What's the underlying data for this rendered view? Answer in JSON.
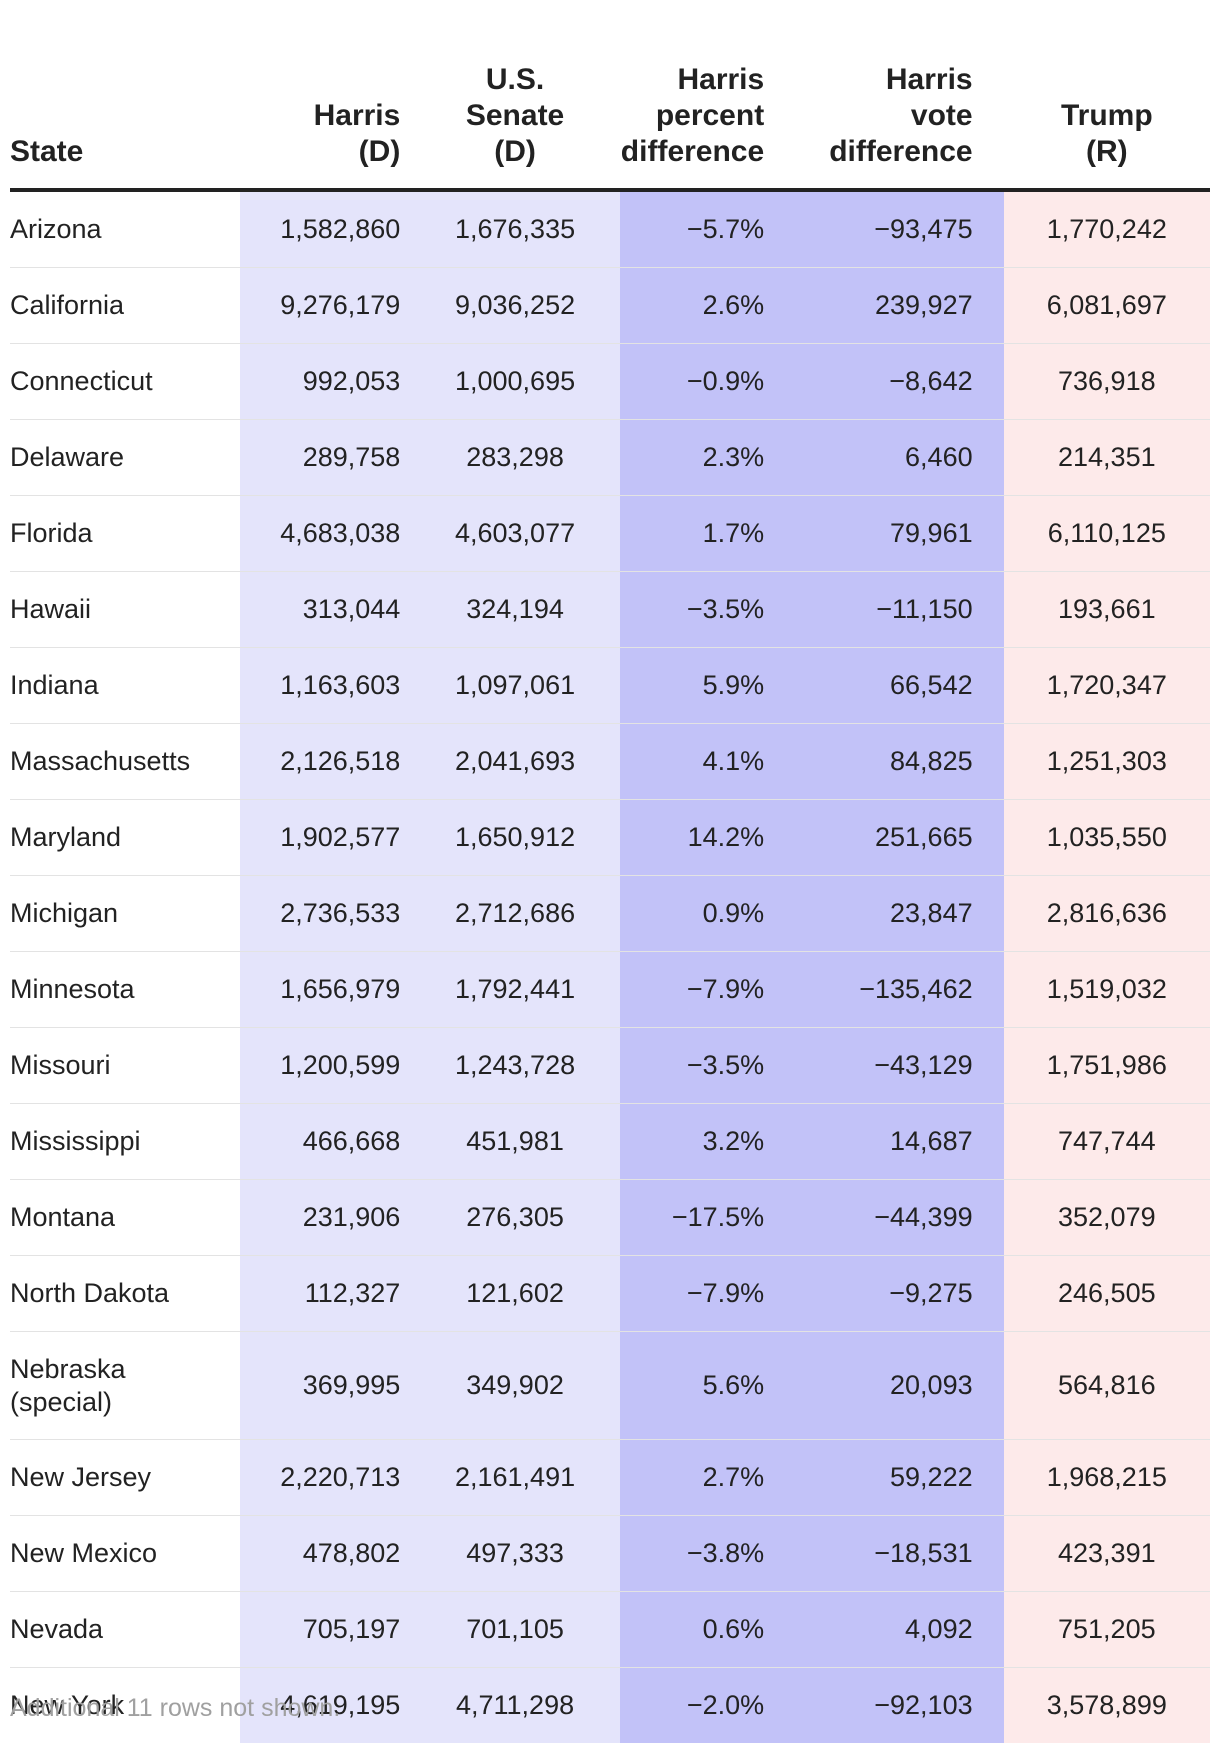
{
  "chart_data": {
    "type": "table",
    "columns": [
      {
        "key": "state",
        "label_lines": [
          "State"
        ]
      },
      {
        "key": "harris",
        "label_lines": [
          "Harris",
          "(D)"
        ]
      },
      {
        "key": "senate",
        "label_lines": [
          "U.S.",
          "Senate",
          "(D)"
        ]
      },
      {
        "key": "pct",
        "label_lines": [
          "Harris",
          "percent",
          "difference"
        ]
      },
      {
        "key": "vote",
        "label_lines": [
          "Harris",
          "vote",
          "difference"
        ]
      },
      {
        "key": "trump",
        "label_lines": [
          "Trump",
          "(R)"
        ]
      }
    ],
    "rows": [
      {
        "state": [
          "Arizona"
        ],
        "harris": "1,582,860",
        "senate": "1,676,335",
        "pct": "−5.7%",
        "vote": "−93,475",
        "trump": "1,770,242"
      },
      {
        "state": [
          "California"
        ],
        "harris": "9,276,179",
        "senate": "9,036,252",
        "pct": "2.6%",
        "vote": "239,927",
        "trump": "6,081,697"
      },
      {
        "state": [
          "Connecticut"
        ],
        "harris": "992,053",
        "senate": "1,000,695",
        "pct": "−0.9%",
        "vote": "−8,642",
        "trump": "736,918"
      },
      {
        "state": [
          "Delaware"
        ],
        "harris": "289,758",
        "senate": "283,298",
        "pct": "2.3%",
        "vote": "6,460",
        "trump": "214,351"
      },
      {
        "state": [
          "Florida"
        ],
        "harris": "4,683,038",
        "senate": "4,603,077",
        "pct": "1.7%",
        "vote": "79,961",
        "trump": "6,110,125"
      },
      {
        "state": [
          "Hawaii"
        ],
        "harris": "313,044",
        "senate": "324,194",
        "pct": "−3.5%",
        "vote": "−11,150",
        "trump": "193,661"
      },
      {
        "state": [
          "Indiana"
        ],
        "harris": "1,163,603",
        "senate": "1,097,061",
        "pct": "5.9%",
        "vote": "66,542",
        "trump": "1,720,347"
      },
      {
        "state": [
          "Massachusetts"
        ],
        "harris": "2,126,518",
        "senate": "2,041,693",
        "pct": "4.1%",
        "vote": "84,825",
        "trump": "1,251,303"
      },
      {
        "state": [
          "Maryland"
        ],
        "harris": "1,902,577",
        "senate": "1,650,912",
        "pct": "14.2%",
        "vote": "251,665",
        "trump": "1,035,550"
      },
      {
        "state": [
          "Michigan"
        ],
        "harris": "2,736,533",
        "senate": "2,712,686",
        "pct": "0.9%",
        "vote": "23,847",
        "trump": "2,816,636"
      },
      {
        "state": [
          "Minnesota"
        ],
        "harris": "1,656,979",
        "senate": "1,792,441",
        "pct": "−7.9%",
        "vote": "−135,462",
        "trump": "1,519,032"
      },
      {
        "state": [
          "Missouri"
        ],
        "harris": "1,200,599",
        "senate": "1,243,728",
        "pct": "−3.5%",
        "vote": "−43,129",
        "trump": "1,751,986"
      },
      {
        "state": [
          "Mississippi"
        ],
        "harris": "466,668",
        "senate": "451,981",
        "pct": "3.2%",
        "vote": "14,687",
        "trump": "747,744"
      },
      {
        "state": [
          "Montana"
        ],
        "harris": "231,906",
        "senate": "276,305",
        "pct": "−17.5%",
        "vote": "−44,399",
        "trump": "352,079"
      },
      {
        "state": [
          "North Dakota"
        ],
        "harris": "112,327",
        "senate": "121,602",
        "pct": "−7.9%",
        "vote": "−9,275",
        "trump": "246,505"
      },
      {
        "state": [
          "Nebraska",
          "(special)"
        ],
        "harris": "369,995",
        "senate": "349,902",
        "pct": "5.6%",
        "vote": "20,093",
        "trump": "564,816"
      },
      {
        "state": [
          "New Jersey"
        ],
        "harris": "2,220,713",
        "senate": "2,161,491",
        "pct": "2.7%",
        "vote": "59,222",
        "trump": "1,968,215"
      },
      {
        "state": [
          "New Mexico"
        ],
        "harris": "478,802",
        "senate": "497,333",
        "pct": "−3.8%",
        "vote": "−18,531",
        "trump": "423,391"
      },
      {
        "state": [
          "Nevada"
        ],
        "harris": "705,197",
        "senate": "701,105",
        "pct": "0.6%",
        "vote": "4,092",
        "trump": "751,205"
      },
      {
        "state": [
          "New York"
        ],
        "harris": "4,619,195",
        "senate": "4,711,298",
        "pct": "−2.0%",
        "vote": "−92,103",
        "trump": "3,578,899"
      }
    ],
    "footnote": "Additional 11 rows not shown."
  },
  "colors": {
    "harris_bg": "#e4e4fb",
    "difference_bg": "#c2c2f8",
    "trump_bg": "#fdeaea",
    "header_rule": "#222222",
    "row_rule": "#e3e3e3",
    "text": "#222222",
    "footnote_text": "#a0a0a0"
  }
}
